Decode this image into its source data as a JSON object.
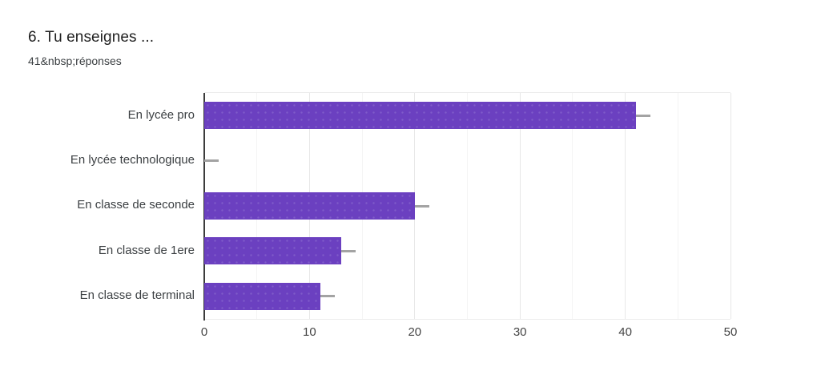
{
  "header": {
    "title": "6. Tu enseignes ...",
    "subtitle": "41&nbsp;réponses"
  },
  "chart_data": {
    "type": "bar",
    "orientation": "horizontal",
    "title": "6. Tu enseignes ...",
    "subtitle": "41&nbsp;réponses",
    "categories": [
      "En lycée pro",
      "En lycée technologique",
      "En classe de seconde",
      "En classe de 1ere",
      "En classe de terminal"
    ],
    "values": [
      41,
      0,
      20,
      13,
      11
    ],
    "xlabel": "",
    "ylabel": "",
    "xlim": [
      0,
      50
    ],
    "x_ticks": [
      0,
      10,
      20,
      30,
      40,
      50
    ],
    "x_minor_ticks": [
      5,
      15,
      25,
      35,
      45
    ],
    "grid": true,
    "legend": "none",
    "annotation_stems": true,
    "colors": {
      "bar": "#6b40c0",
      "stem": "#a3a3a3",
      "axis_line": "#3c3c3c",
      "major_gridline": "#e8e8e8",
      "minor_gridline": "#f4f4f4",
      "title_text": "#212121",
      "label_text": "#3c4043",
      "tick_text": "#444444",
      "background": "#ffffff"
    }
  }
}
